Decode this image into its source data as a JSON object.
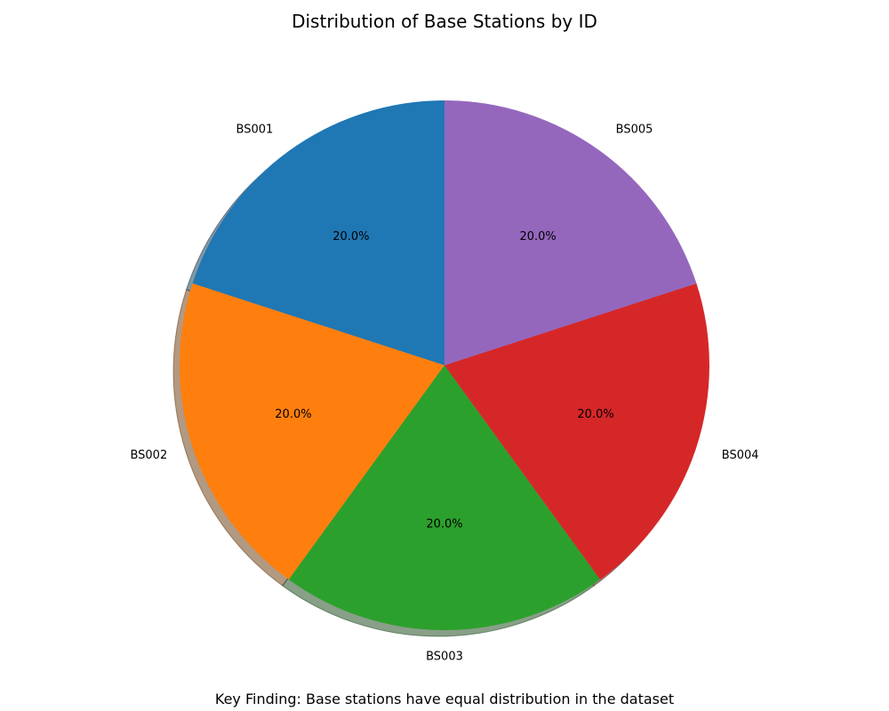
{
  "chart_data": {
    "type": "pie",
    "title": "Distribution of Base Stations by ID",
    "categories": [
      "BS001",
      "BS002",
      "BS003",
      "BS004",
      "BS005"
    ],
    "values": [
      20.0,
      20.0,
      20.0,
      20.0,
      20.0
    ],
    "percent_labels": [
      "20.0%",
      "20.0%",
      "20.0%",
      "20.0%",
      "20.0%"
    ],
    "colors": [
      "#1f77b4",
      "#ff7f0e",
      "#2ca02c",
      "#d62728",
      "#9467bd"
    ],
    "start_angle_deg": 90,
    "direction": "counterclockwise",
    "shadow": true,
    "annotation": "Key Finding: Base stations have equal distribution in the dataset"
  }
}
